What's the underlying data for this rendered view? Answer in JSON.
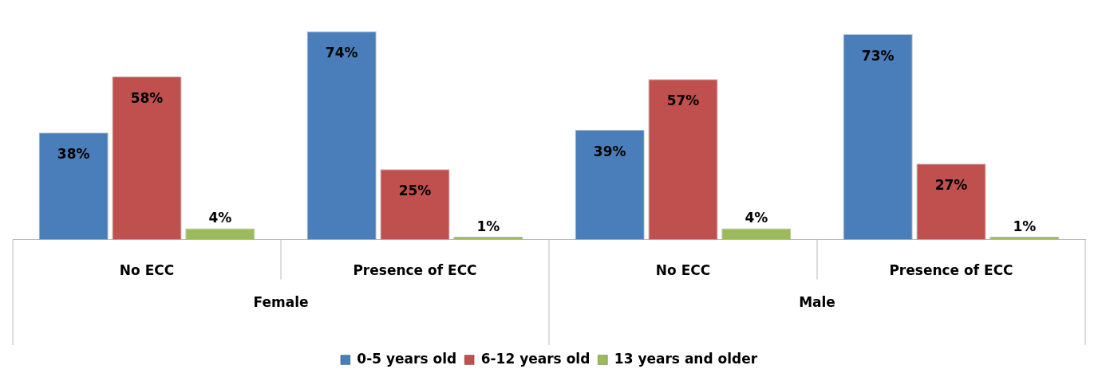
{
  "chart_data": {
    "type": "bar",
    "categories": [
      "No ECC",
      "Presence of ECC",
      "No ECC",
      "Presence of ECC"
    ],
    "series": [
      {
        "name": "0-5 years old",
        "color": "#4a7ebb",
        "values": [
          38,
          74,
          39,
          73
        ],
        "value_labels": [
          "38%",
          "74%",
          "39%",
          "73%"
        ]
      },
      {
        "name": "6-12 years old",
        "color": "#c0504d",
        "values": [
          58,
          25,
          57,
          27
        ],
        "value_labels": [
          "58%",
          "25%",
          "57%",
          "27%"
        ]
      },
      {
        "name": "13 years and older",
        "color": "#9bbb59",
        "values": [
          4,
          1,
          4,
          1
        ],
        "value_labels": [
          "4%",
          "1%",
          "4%",
          "1%"
        ]
      }
    ],
    "annotations": [
      "Female",
      "Male"
    ],
    "legend": "bottom",
    "grid": false
  }
}
